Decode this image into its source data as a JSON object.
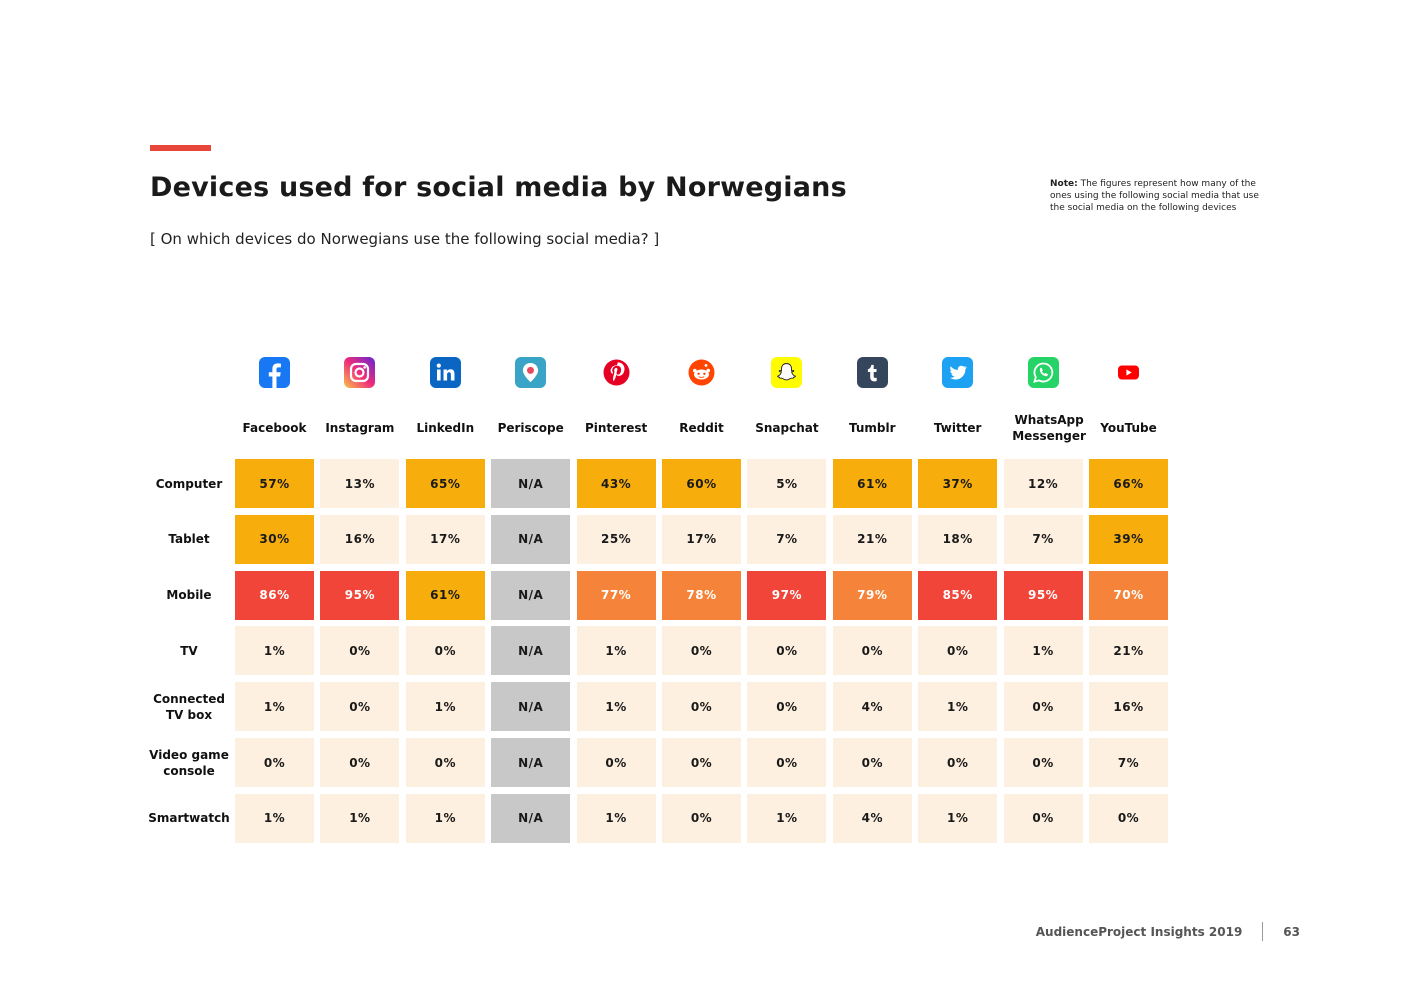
{
  "page": {
    "title": "Devices used for social media by Norwegians",
    "subtitle": "[ On which devices do Norwegians use the following social media? ]",
    "note_label": "Note:",
    "note_text": "The figures represent how many of the ones using the following social media that use the social media on the following devices",
    "footer_brand": "AudienceProject Insights 2019",
    "page_number": "63"
  },
  "colors": {
    "accent": "#e8463a",
    "na": "#c8c8c8",
    "low": "#fdf0e0",
    "mid": "#f7ae0d",
    "high_orange": "#f5843a",
    "high_red": "#f04538"
  },
  "chart_data": {
    "type": "table",
    "title": "Devices used for social media by Norwegians",
    "columns": [
      {
        "name": "Facebook",
        "icon": "facebook-icon"
      },
      {
        "name": "Instagram",
        "icon": "instagram-icon"
      },
      {
        "name": "LinkedIn",
        "icon": "linkedin-icon"
      },
      {
        "name": "Periscope",
        "icon": "periscope-icon"
      },
      {
        "name": "Pinterest",
        "icon": "pinterest-icon"
      },
      {
        "name": "Reddit",
        "icon": "reddit-icon"
      },
      {
        "name": "Snapchat",
        "icon": "snapchat-icon"
      },
      {
        "name": "Tumblr",
        "icon": "tumblr-icon"
      },
      {
        "name": "Twitter",
        "icon": "twitter-icon"
      },
      {
        "name": "WhatsApp Messenger",
        "icon": "whatsapp-icon"
      },
      {
        "name": "YouTube",
        "icon": "youtube-icon"
      }
    ],
    "rows": [
      {
        "name": "Computer",
        "values": [
          "57%",
          "13%",
          "65%",
          "N/A",
          "43%",
          "60%",
          "5%",
          "61%",
          "37%",
          "12%",
          "66%"
        ]
      },
      {
        "name": "Tablet",
        "values": [
          "30%",
          "16%",
          "17%",
          "N/A",
          "25%",
          "17%",
          "7%",
          "21%",
          "18%",
          "7%",
          "39%"
        ]
      },
      {
        "name": "Mobile",
        "values": [
          "86%",
          "95%",
          "61%",
          "N/A",
          "77%",
          "78%",
          "97%",
          "79%",
          "85%",
          "95%",
          "70%"
        ]
      },
      {
        "name": "TV",
        "values": [
          "1%",
          "0%",
          "0%",
          "N/A",
          "1%",
          "0%",
          "0%",
          "0%",
          "0%",
          "1%",
          "21%"
        ]
      },
      {
        "name": "Connected TV box",
        "values": [
          "1%",
          "0%",
          "1%",
          "N/A",
          "1%",
          "0%",
          "0%",
          "4%",
          "1%",
          "0%",
          "16%"
        ]
      },
      {
        "name": "Video game console",
        "values": [
          "0%",
          "0%",
          "0%",
          "N/A",
          "0%",
          "0%",
          "0%",
          "0%",
          "0%",
          "0%",
          "7%"
        ]
      },
      {
        "name": "Smartwatch",
        "values": [
          "1%",
          "1%",
          "1%",
          "N/A",
          "1%",
          "0%",
          "1%",
          "4%",
          "1%",
          "0%",
          "0%"
        ]
      }
    ]
  }
}
